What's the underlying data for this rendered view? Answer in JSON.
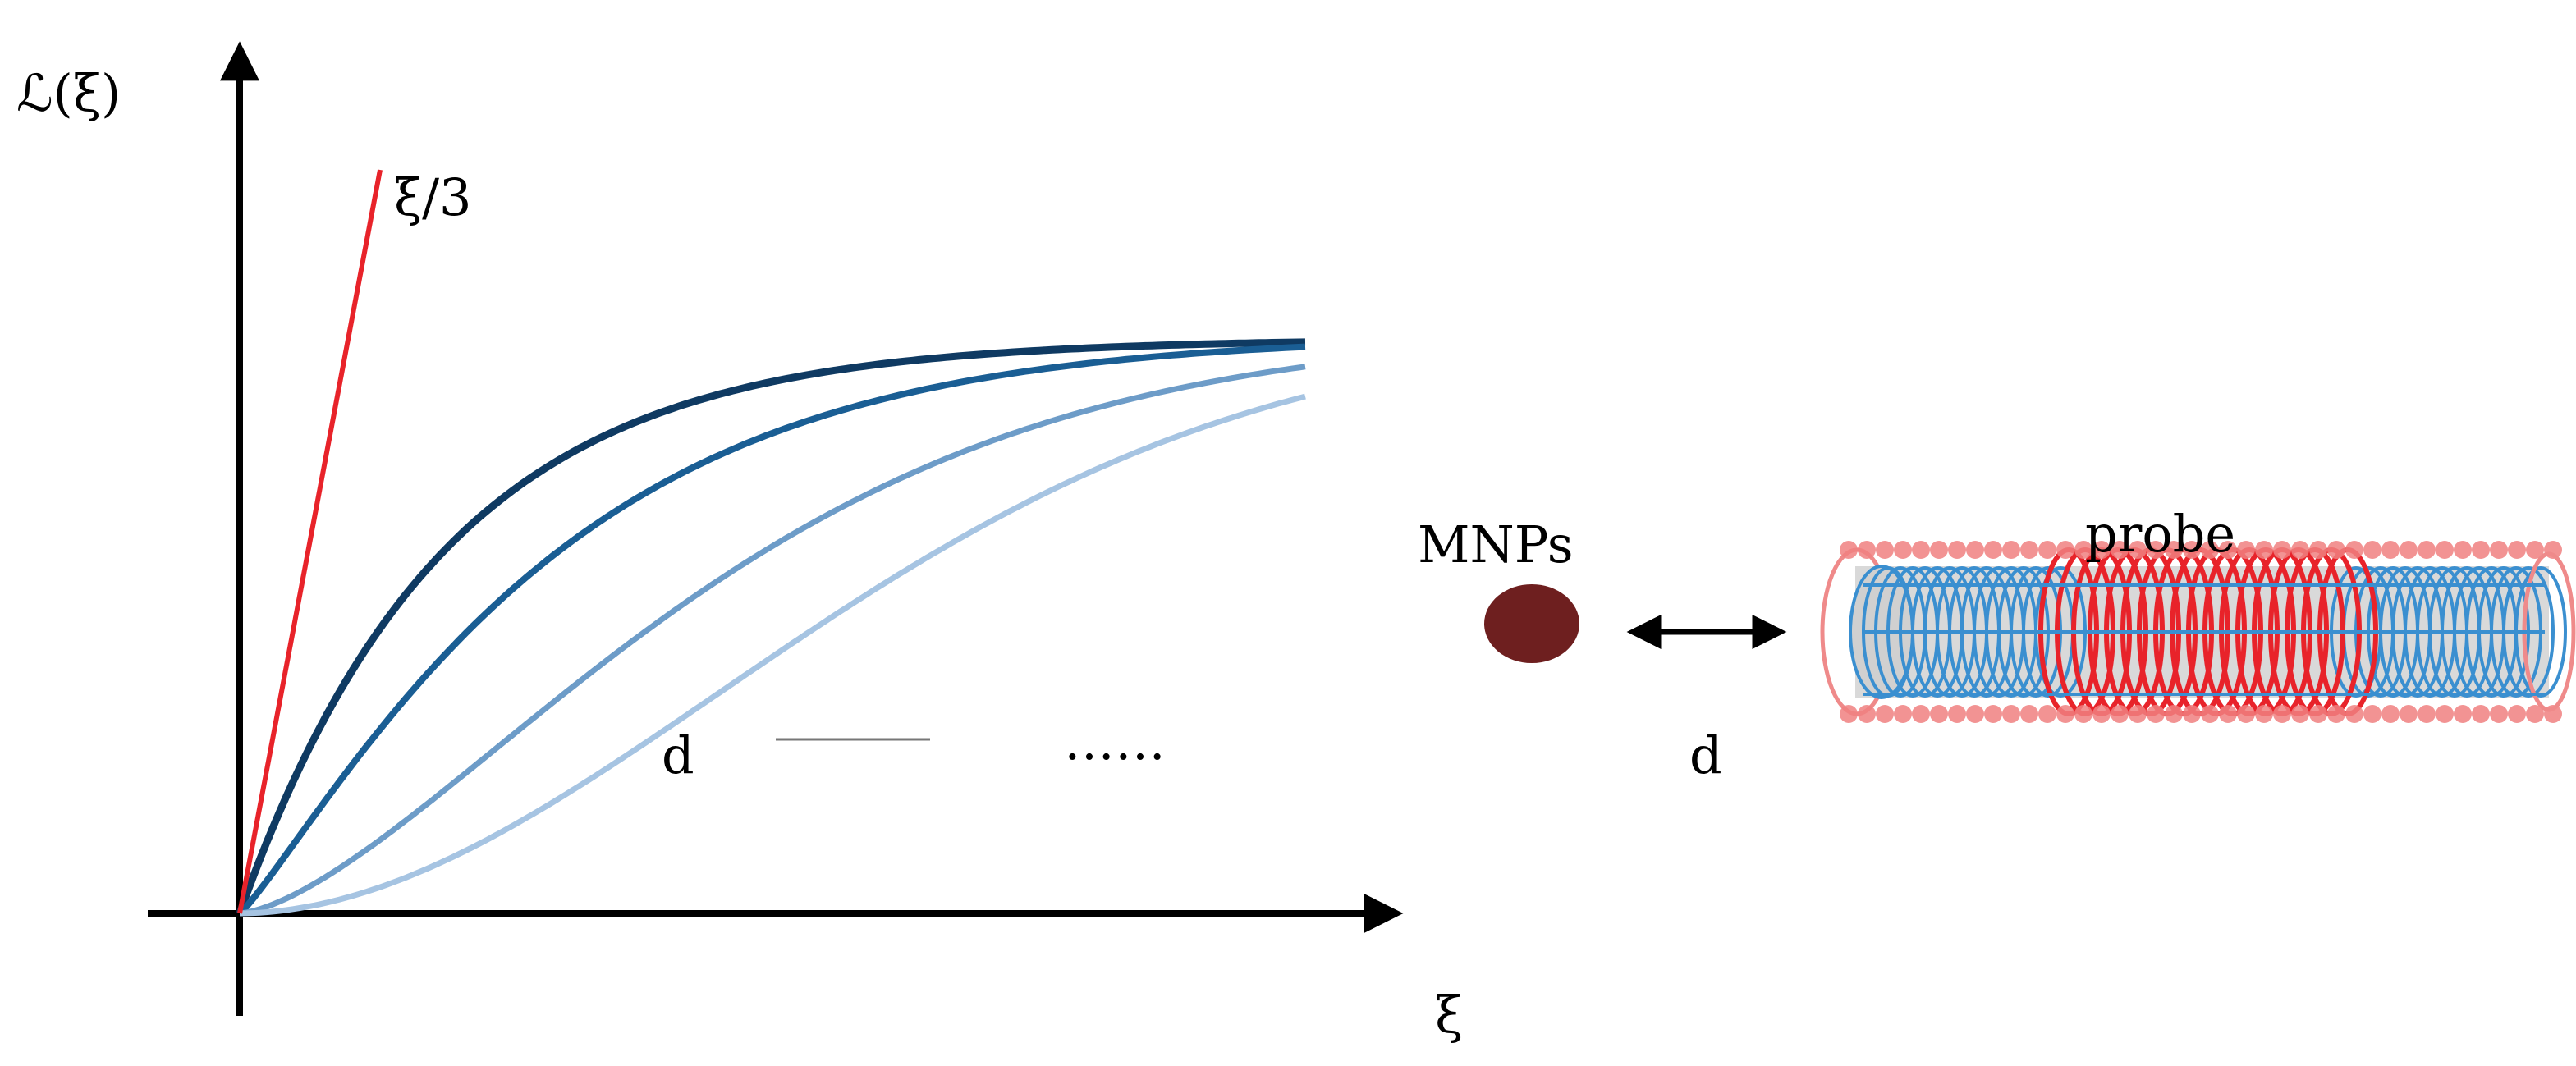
{
  "graph": {
    "y_axis_label": "ℒ(ξ)",
    "x_axis_label": "ξ",
    "tangent_label": "ξ/3",
    "legend_d_label": "d",
    "legend_ellipsis": "……",
    "colors": {
      "tangent": "#e8232a",
      "axis": "#000000",
      "curves": [
        "#0f3a62",
        "#1a5e94",
        "#6d9cc8",
        "#a6c4e2"
      ]
    }
  },
  "setup": {
    "mnp_label": "MNPs",
    "probe_label": "probe",
    "distance_label": "d",
    "colors": {
      "mnp": "#6e1f1f",
      "coil_red": "#e8232a",
      "coil_blue": "#3a8fd0",
      "core": "#d9d9d9"
    }
  }
}
